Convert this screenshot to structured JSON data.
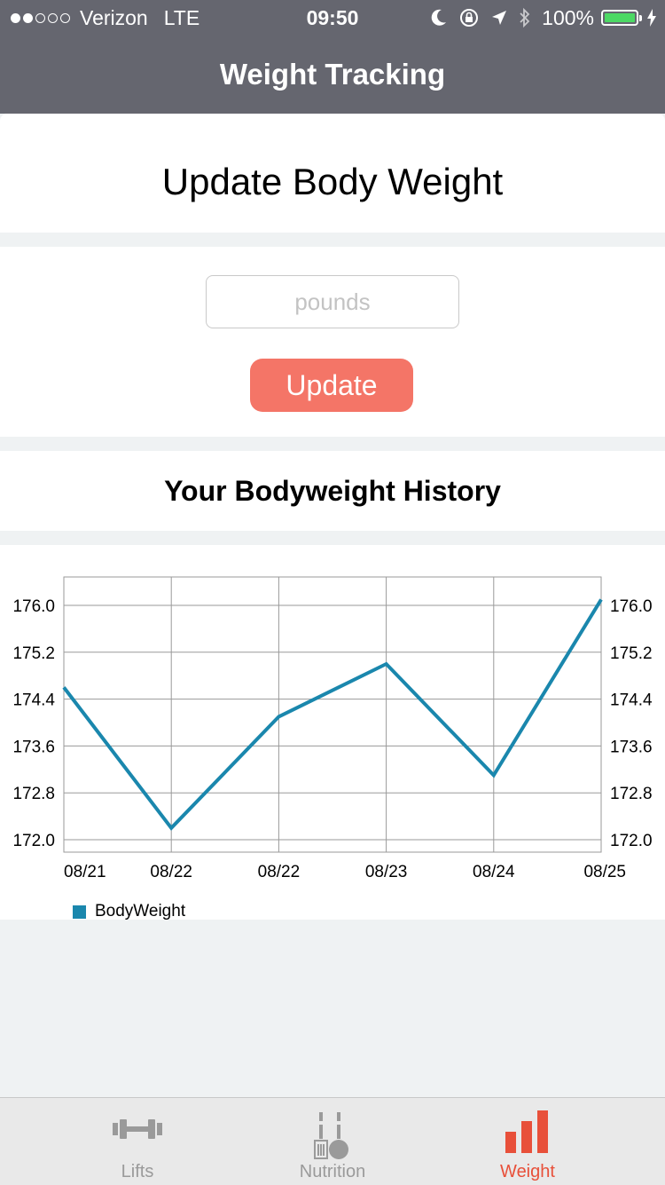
{
  "status_bar": {
    "carrier": "Verizon",
    "network": "LTE",
    "time": "09:50",
    "battery": "100%",
    "signal_bars_filled": 2,
    "signal_bars_total": 5
  },
  "nav": {
    "title": "Weight Tracking"
  },
  "update_section": {
    "heading": "Update Body Weight"
  },
  "form": {
    "input_placeholder": "pounds",
    "input_value": "",
    "button_label": "Update"
  },
  "history_section": {
    "heading": "Your Bodyweight History"
  },
  "chart_data": {
    "type": "line",
    "categories": [
      "08/21",
      "08/22",
      "08/22",
      "08/23",
      "08/24",
      "08/25"
    ],
    "series": [
      {
        "name": "BodyWeight",
        "values": [
          174.6,
          172.2,
          174.1,
          175.0,
          173.1,
          176.1
        ],
        "color": "#1a87ad"
      }
    ],
    "ylim": [
      172.0,
      176.0
    ],
    "yticks": [
      "172.0",
      "172.8",
      "173.6",
      "174.4",
      "175.2",
      "176.0"
    ],
    "grid": true,
    "legend": "bottom-left",
    "dual_y_axis": true
  },
  "tabs": [
    {
      "label": "Lifts",
      "icon": "dumbbell-icon",
      "active": false
    },
    {
      "label": "Nutrition",
      "icon": "nutrition-icon",
      "active": false
    },
    {
      "label": "Weight",
      "icon": "bar-chart-icon",
      "active": true
    }
  ],
  "colors": {
    "nav_bg": "#65666f",
    "accent_button": "#f47567",
    "active_tab": "#e8503a",
    "inactive_tab": "#9a9a9a",
    "line": "#1a87ad"
  }
}
